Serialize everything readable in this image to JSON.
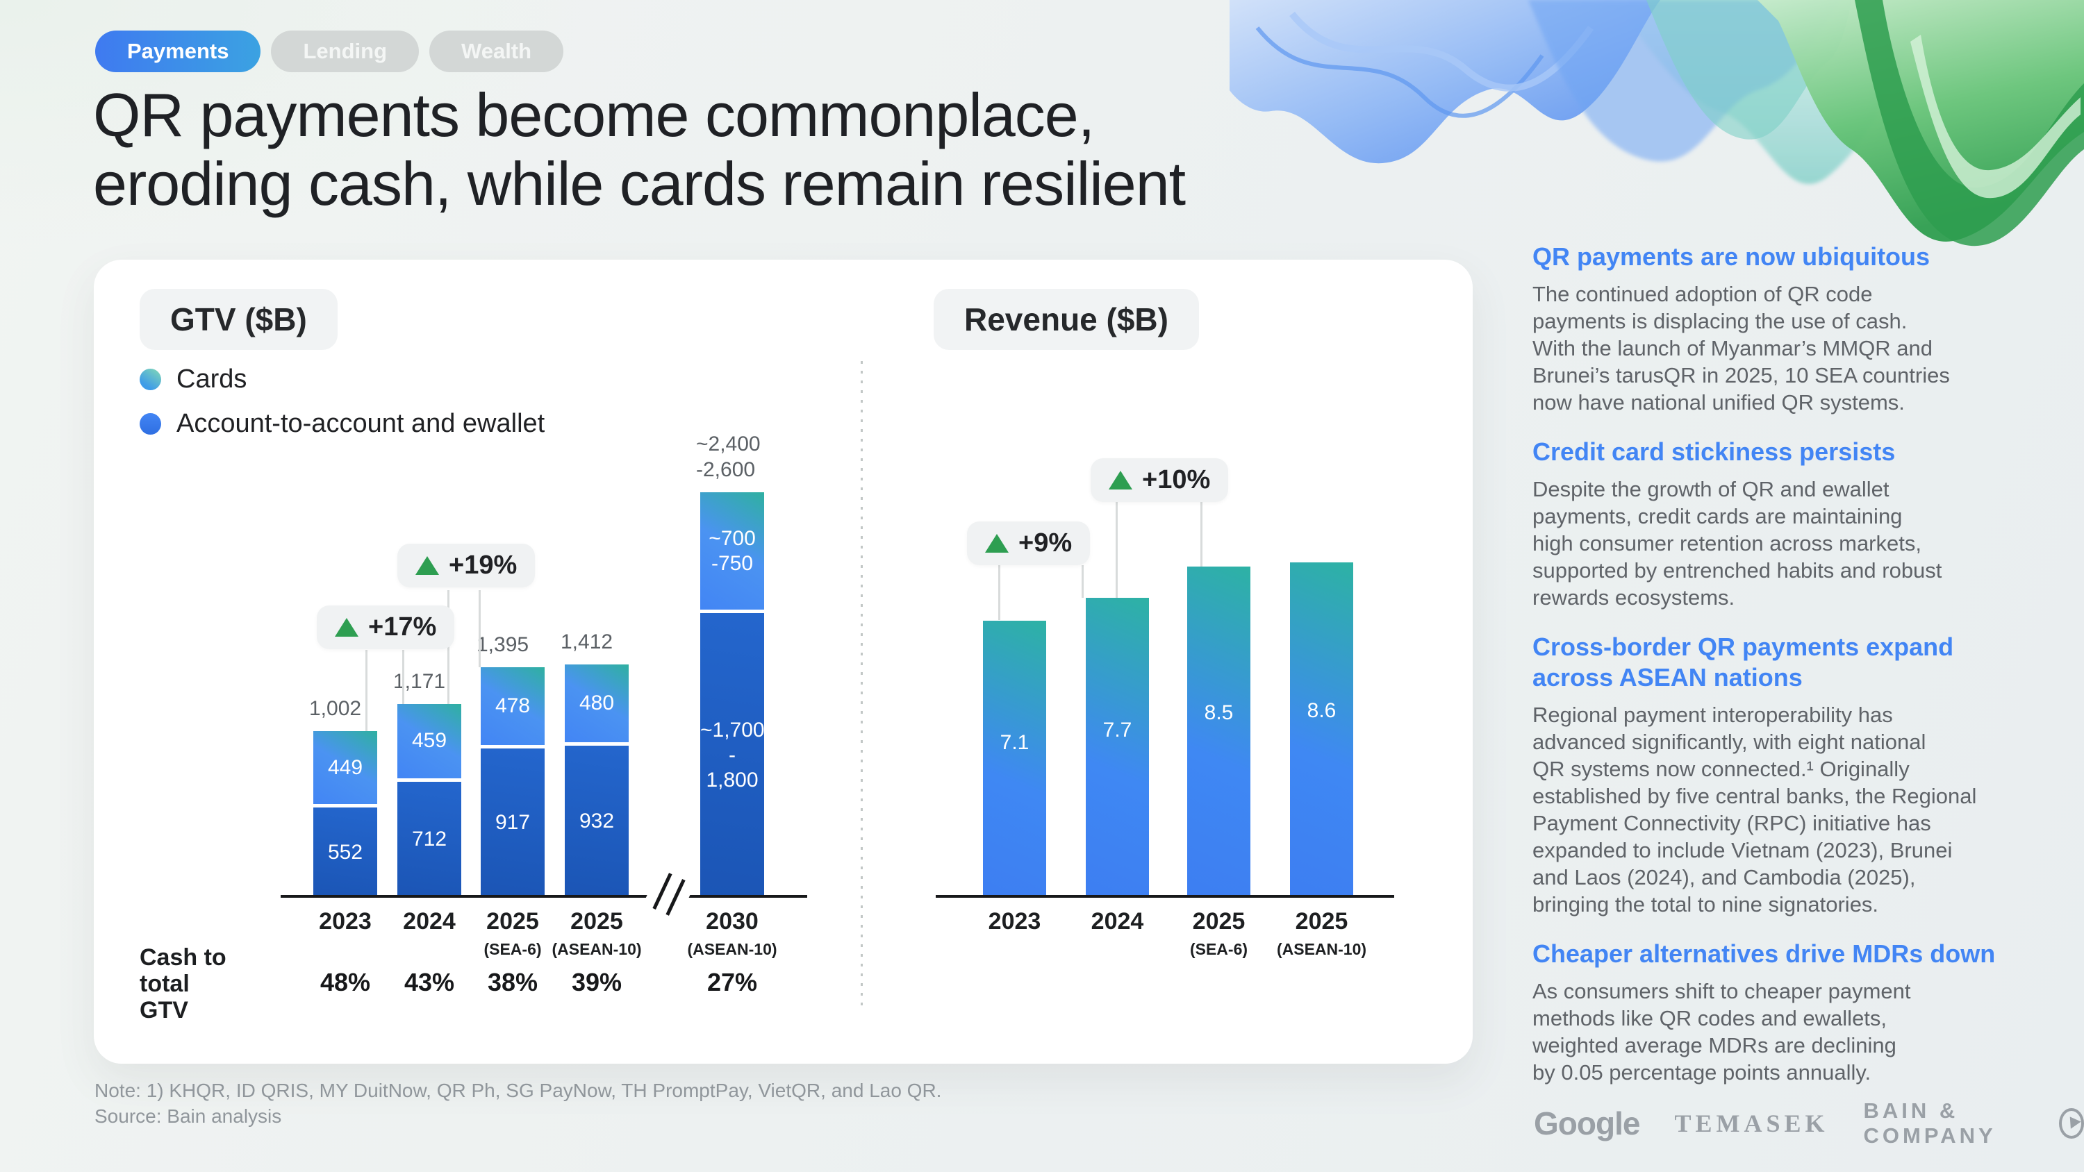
{
  "tabs": [
    {
      "label": "Payments",
      "active": true
    },
    {
      "label": "Lending",
      "active": false
    },
    {
      "label": "Wealth",
      "active": false
    }
  ],
  "title": "QR payments become commonplace,\neroding cash, while cards remain resilient",
  "panel": {
    "gtv_chip": "GTV ($B)",
    "revenue_chip": "Revenue ($B)",
    "legend": [
      {
        "label": "Cards"
      },
      {
        "label": "Account-to-account and ewallet"
      }
    ],
    "cash_row_label": "Cash to\ntotal\nGTV"
  },
  "chart_data": [
    {
      "type": "bar",
      "stacked": true,
      "title": "GTV ($B)",
      "categories": [
        {
          "year": "2023",
          "sub": ""
        },
        {
          "year": "2024",
          "sub": ""
        },
        {
          "year": "2025",
          "sub": "(SEA-6)"
        },
        {
          "year": "2025",
          "sub": "(ASEAN-10)"
        },
        {
          "year": "2030",
          "sub": "(ASEAN-10)"
        }
      ],
      "series": [
        {
          "name": "Account-to-account and ewallet",
          "values": [
            552,
            712,
            917,
            932,
            1750
          ],
          "labels": [
            "552",
            "712",
            "917",
            "932",
            "~1,700\n- 1,800"
          ]
        },
        {
          "name": "Cards",
          "values": [
            449,
            459,
            478,
            480,
            725
          ],
          "labels": [
            "449",
            "459",
            "478",
            "480",
            "~700\n-750"
          ]
        }
      ],
      "total_labels": [
        "1,002",
        "1,171",
        "1,395",
        "1,412",
        "~2,400\n-2,600"
      ],
      "growth_badges": [
        {
          "label": "+17%",
          "between": [
            "2023",
            "2024"
          ]
        },
        {
          "label": "+19%",
          "between": [
            "2024",
            "2025 (SEA-6)"
          ]
        }
      ],
      "axis_break_after_index": 3,
      "cash_to_total_gtv": [
        "48%",
        "43%",
        "38%",
        "39%",
        "27%"
      ],
      "ylim": [
        0,
        2600
      ],
      "grid": false,
      "legend_position": "top-left"
    },
    {
      "type": "bar",
      "title": "Revenue ($B)",
      "categories": [
        {
          "year": "2023",
          "sub": ""
        },
        {
          "year": "2024",
          "sub": ""
        },
        {
          "year": "2025",
          "sub": "(SEA-6)"
        },
        {
          "year": "2025",
          "sub": "(ASEAN-10)"
        }
      ],
      "values": [
        7.1,
        7.7,
        8.5,
        8.6
      ],
      "labels": [
        "7.1",
        "7.7",
        "8.5",
        "8.6"
      ],
      "growth_badges": [
        {
          "label": "+9%",
          "between": [
            "2023",
            "2024"
          ]
        },
        {
          "label": "+10%",
          "between": [
            "2024",
            "2025 (SEA-6)"
          ]
        }
      ],
      "ylim": [
        0,
        10
      ],
      "grid": false
    }
  ],
  "sidebar": {
    "sections": [
      {
        "heading": "QR payments are now ubiquitous",
        "body": "The continued adoption of QR code\npayments is displacing the use of cash.\nWith the launch of Myanmar’s MMQR and\nBrunei’s tarusQR in 2025, 10 SEA countries\nnow have national unified QR systems."
      },
      {
        "heading": "Credit card stickiness persists",
        "body": "Despite the growth of QR and ewallet\npayments, credit cards are maintaining\nhigh consumer retention across markets,\nsupported by entrenched habits and robust\nrewards ecosystems."
      },
      {
        "heading": "Cross-border QR payments expand\nacross ASEAN nations",
        "body": "Regional payment interoperability has\nadvanced significantly, with eight national\nQR systems now connected.¹ Originally\nestablished by five central banks, the Regional\nPayment Connectivity (RPC) initiative has\nexpanded to include Vietnam (2023), Brunei\nand Laos (2024), and Cambodia (2025),\nbringing the total to nine signatories."
      },
      {
        "heading": "Cheaper alternatives drive MDRs down",
        "body": "As consumers shift to cheaper payment\nmethods like QR codes and ewallets,\nweighted average MDRs are declining\nby 0.05 percentage points annually."
      }
    ]
  },
  "footer": {
    "note": "Note: 1) KHQR, ID QRIS, MY DuitNow, QR Ph, SG PayNow, TH PromptPay, VietQR, and Lao QR.",
    "source": "Source: Bain analysis"
  },
  "logos": [
    {
      "name": "Google"
    },
    {
      "name": "TEMASEK"
    },
    {
      "name": "BAIN & COMPANY"
    }
  ],
  "colors": {
    "accent_blue": "#4285f4",
    "growth_green": "#2e9e51",
    "cards_gradient": [
      "#2fb0a1",
      "#4285f4"
    ],
    "a2a_gradient": [
      "#2466cd",
      "#1b55b5"
    ],
    "revenue_gradient": [
      "#2db2a4",
      "#3d7ef2"
    ],
    "badge_bg": "#f0f2f3",
    "axis": "#17181a",
    "text_dark": "#202124",
    "text_gray": "#5f6368",
    "muted_gray": "#90969b",
    "logo_gray": "#9aa0a6",
    "active_tab_gradient": [
      "#3f7af0",
      "#3ba2e2"
    ]
  }
}
